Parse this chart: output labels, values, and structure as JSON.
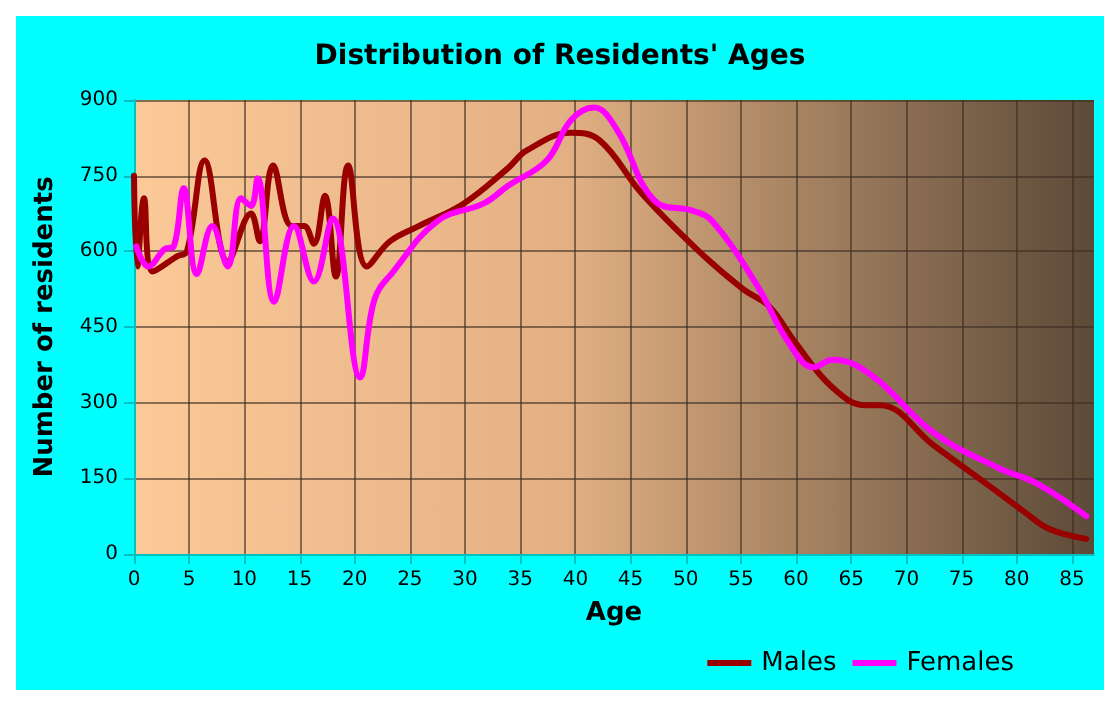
{
  "chart_data": {
    "type": "line",
    "title": "Distribution of Residents' Ages",
    "xlabel": "Age",
    "ylabel": "Number of residents",
    "xlim": [
      0,
      87
    ],
    "xticks": [
      0,
      5,
      10,
      15,
      20,
      25,
      30,
      35,
      40,
      45,
      50,
      55,
      60,
      65,
      70,
      75,
      80,
      85
    ],
    "ylim": [
      0,
      900
    ],
    "yticks": [
      0,
      150,
      300,
      450,
      600,
      750,
      900
    ],
    "grid": true,
    "legend": "bottom right",
    "marker": "none",
    "line_style": "solid",
    "series": [
      {
        "name": "Males",
        "color": "#990000",
        "x": [
          0,
          0.3,
          0.9,
          1.7,
          3.9,
          4.8,
          6.4,
          8.5,
          10.6,
          11.4,
          12.6,
          14.3,
          15.4,
          16.3,
          17.3,
          18.3,
          19.4,
          21.1,
          23.2,
          25.8,
          29.9,
          33.9,
          35.6,
          39.6,
          42.2,
          46,
          51.2,
          55.2,
          57.6,
          59.9,
          63.3,
          66.3,
          67.6,
          72.5,
          77.2,
          80.6,
          82.9,
          86.3
        ],
        "values": [
          750,
          570,
          705,
          560,
          590,
          600,
          780,
          580,
          675,
          620,
          770,
          650,
          650,
          615,
          710,
          550,
          770,
          570,
          620,
          650,
          695,
          765,
          800,
          835,
          820,
          715,
          600,
          525,
          490,
          420,
          330,
          295,
          295,
          215,
          140,
          85,
          50,
          30
        ]
      },
      {
        "name": "Females",
        "color": "#ff00ff",
        "x": [
          0.2,
          1.3,
          2.8,
          3.6,
          4.5,
          5.7,
          7.1,
          8.5,
          9.7,
          10.6,
          11.2,
          12.7,
          14.5,
          16.3,
          18,
          20.5,
          21.8,
          23.5,
          27.5,
          31.7,
          33.9,
          37.4,
          39.6,
          41.7,
          43.8,
          47.2,
          50.7,
          52.4,
          56.4,
          59.3,
          61.6,
          63.3,
          66.8,
          72.5,
          78.4,
          81.8,
          86.3
        ],
        "values": [
          610,
          570,
          605,
          610,
          725,
          555,
          650,
          570,
          705,
          690,
          745,
          500,
          650,
          540,
          665,
          350,
          505,
          560,
          660,
          695,
          730,
          780,
          860,
          885,
          840,
          700,
          680,
          660,
          535,
          420,
          370,
          385,
          355,
          240,
          170,
          140,
          75
        ]
      }
    ]
  }
}
